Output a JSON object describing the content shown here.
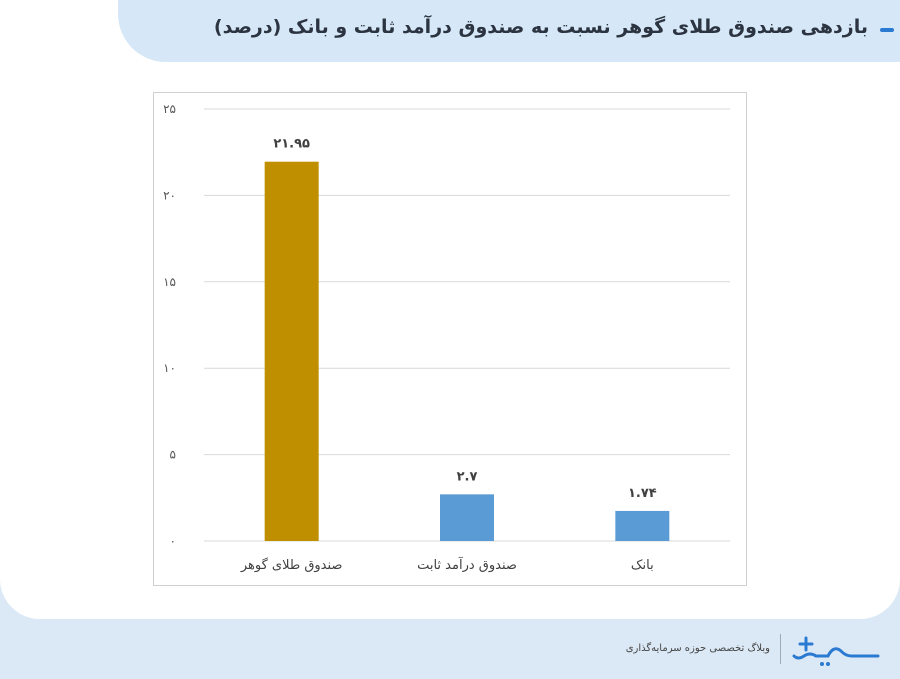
{
  "header": {
    "title": "بازدهی صندوق طلای گوهر نسبت به صندوق درآمد ثابت و بانک (درصد)"
  },
  "footer": {
    "tagline": "وبلاگ تخصصی حوزه سرمایه‌گذاری"
  },
  "colors": {
    "gold": "#bf8f00",
    "blue": "#5b9bd5",
    "accent": "#2b7ad1"
  },
  "chart_data": {
    "type": "bar",
    "categories": [
      "صندوق طلای گوهر",
      "صندوق درآمد ثابت",
      "بانک"
    ],
    "values": [
      21.95,
      2.7,
      1.74
    ],
    "value_labels": [
      "۲۱.۹۵",
      "۲.۷",
      "۱.۷۴"
    ],
    "bar_colors": [
      "#bf8f00",
      "#5b9bd5",
      "#5b9bd5"
    ],
    "ylim": [
      0,
      25
    ],
    "yticks": [
      0,
      5,
      10,
      15,
      20,
      25
    ],
    "ytick_labels": [
      "۰",
      "۵",
      "۱۰",
      "۱۵",
      "۲۰",
      "۲۵"
    ],
    "grid": true,
    "legend": "none",
    "title": "",
    "xlabel": "",
    "ylabel": ""
  }
}
